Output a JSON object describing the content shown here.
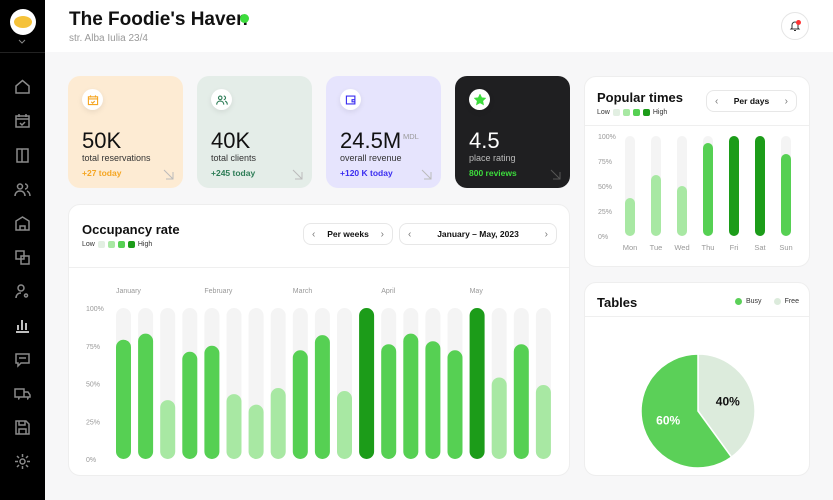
{
  "header": {
    "title": "The Foodie's Haven",
    "address": "str. Alba Iulia 23/4",
    "status_color": "#3ddc3d"
  },
  "sidebar": {
    "items": [
      {
        "name": "home",
        "icon": "home-icon"
      },
      {
        "name": "reservations",
        "icon": "calendar-check-icon"
      },
      {
        "name": "menu",
        "icon": "book-icon"
      },
      {
        "name": "clients",
        "icon": "users-icon"
      },
      {
        "name": "restaurant",
        "icon": "building-icon"
      },
      {
        "name": "translate",
        "icon": "translate-icon"
      },
      {
        "name": "staff",
        "icon": "user-settings-icon"
      },
      {
        "name": "analytics",
        "icon": "bar-chart-icon",
        "active": true
      },
      {
        "name": "messages",
        "icon": "chat-icon"
      },
      {
        "name": "delivery",
        "icon": "truck-icon"
      },
      {
        "name": "storage",
        "icon": "save-icon"
      },
      {
        "name": "settings",
        "icon": "gear-icon"
      }
    ]
  },
  "stats": [
    {
      "value": "50K",
      "label": "total reservations",
      "delta": "+27 today",
      "bg": "#fdebd3",
      "accent": "#f5a623",
      "icon": "calendar-check-icon"
    },
    {
      "value": "40K",
      "label": "total clients",
      "delta": "+245 today",
      "bg": "#e4ede8",
      "accent": "#2e7d57",
      "icon": "users-icon"
    },
    {
      "value": "24.5M",
      "unit": "MDL",
      "label": "overall revenue",
      "delta": "+120 K today",
      "bg": "#e6e4fd",
      "accent": "#3b2ef0",
      "icon": "wallet-icon"
    },
    {
      "value": "4.5",
      "label": "place rating",
      "delta": "800 reviews",
      "bg": "#1f1f21",
      "accent": "#3ddc3d",
      "icon": "star-icon"
    }
  ],
  "legend": {
    "low": "Low",
    "high": "High",
    "colors": [
      "#e2efe2",
      "#a8e8a3",
      "#56d053",
      "#1c9c19"
    ]
  },
  "chart_data": [
    {
      "type": "bar",
      "title": "Occupancy rate",
      "period": "Per weeks",
      "range": "January – May, 2023",
      "month_labels": [
        "January",
        "February",
        "March",
        "April",
        "May"
      ],
      "yticks": [
        "100%",
        "75%",
        "50%",
        "25%",
        "0%"
      ],
      "ylim": [
        0,
        100
      ],
      "values": [
        79,
        83,
        39,
        71,
        75,
        43,
        36,
        47,
        72,
        82,
        45,
        100,
        76,
        83,
        78,
        72,
        100,
        54,
        76,
        49
      ]
    },
    {
      "type": "bar",
      "title": "Popular times",
      "period": "Per days",
      "categories": [
        "Mon",
        "Tue",
        "Wed",
        "Thu",
        "Fri",
        "Sat",
        "Sun"
      ],
      "yticks": [
        "100%",
        "75%",
        "50%",
        "25%",
        "0%"
      ],
      "ylim": [
        0,
        100
      ],
      "values": [
        38,
        61,
        50,
        93,
        100,
        100,
        82
      ]
    },
    {
      "type": "pie",
      "title": "Tables",
      "series": [
        {
          "name": "Busy",
          "value": 60,
          "label": "60%",
          "color": "#5bd058"
        },
        {
          "name": "Free",
          "value": 40,
          "label": "40%",
          "color": "#dcebdc"
        }
      ]
    }
  ]
}
